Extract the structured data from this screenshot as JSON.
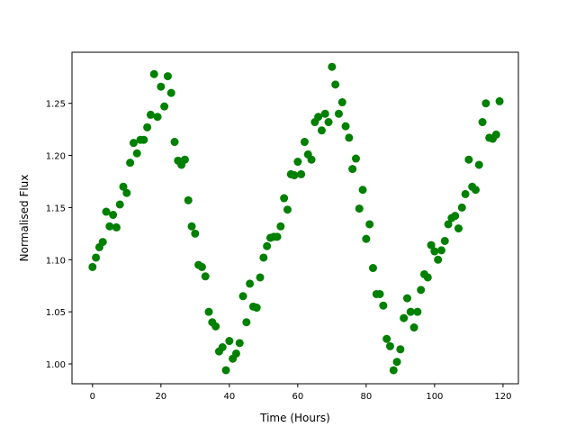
{
  "chart_data": {
    "type": "scatter",
    "title": "",
    "xlabel": "Time (Hours)",
    "ylabel": "Normalised Flux",
    "xlim": [
      -6,
      124.5
    ],
    "ylim": [
      0.981,
      1.299
    ],
    "xticks": [
      0,
      20,
      40,
      60,
      80,
      100,
      120
    ],
    "xtick_labels": [
      "0",
      "20",
      "40",
      "60",
      "80",
      "100",
      "120"
    ],
    "yticks": [
      1.0,
      1.05,
      1.1,
      1.15,
      1.2,
      1.25
    ],
    "ytick_labels": [
      "1.00",
      "1.05",
      "1.10",
      "1.15",
      "1.20",
      "1.25"
    ],
    "grid": false,
    "marker_color": "#008000",
    "x": [
      0,
      1,
      2,
      3,
      4,
      5,
      6,
      7,
      8,
      9,
      10,
      11,
      12,
      13,
      14,
      15,
      16,
      17,
      18,
      19,
      20,
      21,
      22,
      23,
      24,
      25,
      26,
      27,
      28,
      29,
      30,
      31,
      32,
      33,
      34,
      35,
      36,
      37,
      38,
      39,
      40,
      41,
      42,
      43,
      44,
      45,
      46,
      47,
      48,
      49,
      50,
      51,
      52,
      53,
      54,
      55,
      56,
      57,
      58,
      59,
      60,
      61,
      62,
      63,
      64,
      65,
      66,
      67,
      68,
      69,
      70,
      71,
      72,
      73,
      74,
      75,
      76,
      77,
      78,
      79,
      80,
      81,
      82,
      83,
      84,
      85,
      86,
      87,
      88,
      89,
      90,
      91,
      92,
      93,
      94,
      95,
      96,
      97,
      98,
      99,
      100,
      101,
      102,
      103,
      104,
      105,
      106,
      107,
      108,
      109,
      110,
      111,
      112,
      113,
      114,
      115,
      116,
      117,
      118,
      119
    ],
    "y": [
      1.093,
      1.102,
      1.112,
      1.117,
      1.146,
      1.132,
      1.143,
      1.131,
      1.153,
      1.17,
      1.164,
      1.193,
      1.212,
      1.202,
      1.215,
      1.215,
      1.227,
      1.239,
      1.278,
      1.237,
      1.266,
      1.247,
      1.276,
      1.26,
      1.213,
      1.195,
      1.191,
      1.196,
      1.157,
      1.132,
      1.125,
      1.095,
      1.093,
      1.084,
      1.05,
      1.04,
      1.036,
      1.012,
      1.016,
      0.994,
      1.022,
      1.005,
      1.01,
      1.02,
      1.065,
      1.04,
      1.077,
      1.055,
      1.054,
      1.083,
      1.102,
      1.113,
      1.121,
      1.122,
      1.122,
      1.132,
      1.159,
      1.148,
      1.182,
      1.181,
      1.194,
      1.182,
      1.213,
      1.201,
      1.196,
      1.232,
      1.237,
      1.224,
      1.24,
      1.232,
      1.285,
      1.268,
      1.24,
      1.251,
      1.228,
      1.217,
      1.187,
      1.197,
      1.149,
      1.167,
      1.12,
      1.134,
      1.092,
      1.067,
      1.067,
      1.056,
      1.024,
      1.017,
      0.994,
      1.002,
      1.014,
      1.044,
      1.063,
      1.05,
      1.035,
      1.05,
      1.071,
      1.086,
      1.083,
      1.114,
      1.108,
      1.1,
      1.109,
      1.118,
      1.134,
      1.14,
      1.142,
      1.13,
      1.15,
      1.163,
      1.196,
      1.17,
      1.167,
      1.191,
      1.232,
      1.25,
      1.217,
      1.216,
      1.22,
      1.252
    ]
  }
}
